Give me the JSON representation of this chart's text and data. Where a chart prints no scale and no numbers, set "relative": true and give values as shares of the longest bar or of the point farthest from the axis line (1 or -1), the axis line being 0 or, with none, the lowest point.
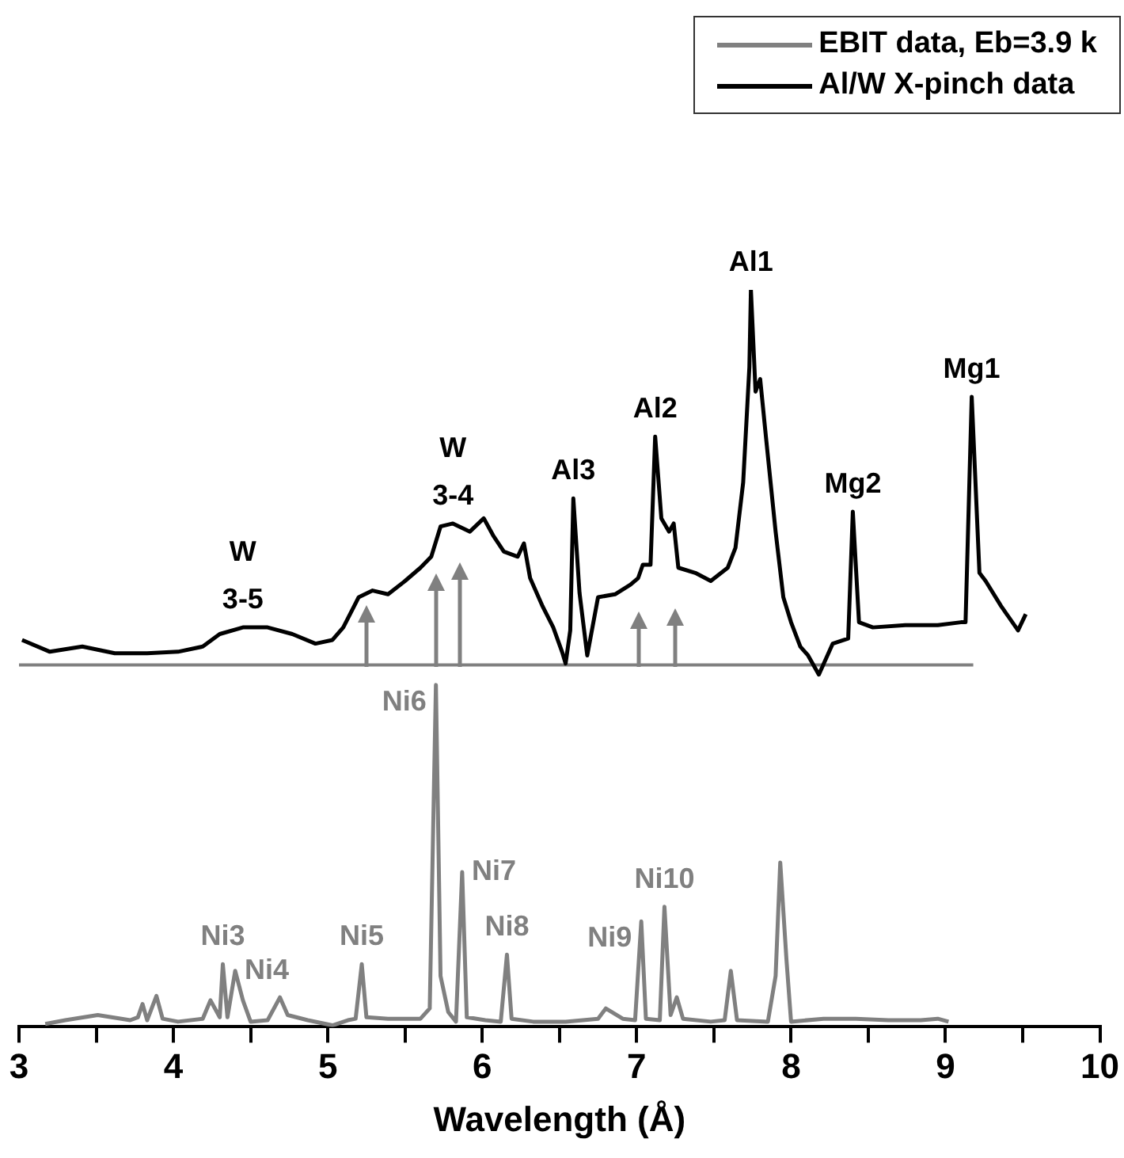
{
  "chart_data": {
    "type": "line",
    "relative": true,
    "xlabel": "Wavelength (Å)",
    "xlim": [
      3,
      10
    ],
    "xticks": [
      3,
      {
        "value": 3.5,
        "label": null
      },
      4,
      {
        "value": 4.5,
        "label": null
      },
      5,
      {
        "value": 5.5,
        "label": null
      },
      6,
      {
        "value": 6.5,
        "label": null
      },
      7,
      {
        "value": 7.5,
        "label": null
      },
      8,
      {
        "value": 8.5,
        "label": null
      },
      9,
      {
        "value": 9.5,
        "label": null
      },
      10
    ],
    "tick_labels": "x",
    "grid": false,
    "legend": "top right",
    "line_style": "solid",
    "series": [
      {
        "name": "EBIT data, Eb=3.9 k",
        "color": "#808080",
        "marker": "none",
        "x": [
          3.17,
          3.3,
          3.51,
          3.72,
          3.77,
          3.8,
          3.83,
          3.89,
          3.93,
          4.03,
          4.19,
          4.24,
          4.3,
          4.32,
          4.35,
          4.4,
          4.45,
          4.5,
          4.61,
          4.69,
          4.74,
          4.87,
          5.03,
          5.13,
          5.18,
          5.22,
          5.25,
          5.39,
          5.6,
          5.66,
          5.7,
          5.73,
          5.78,
          5.83,
          5.87,
          5.9,
          6.02,
          6.12,
          6.16,
          6.19,
          6.33,
          6.54,
          6.75,
          6.8,
          6.91,
          6.99,
          7.03,
          7.06,
          7.15,
          7.18,
          7.22,
          7.26,
          7.3,
          7.48,
          7.57,
          7.61,
          7.65,
          7.85,
          7.9,
          7.93,
          7.97,
          8.0,
          8.21,
          8.42,
          8.63,
          8.84,
          8.95,
          9.02
        ],
        "values": [
          0.004,
          0.009,
          0.016,
          0.009,
          0.013,
          0.031,
          0.009,
          0.042,
          0.011,
          0.007,
          0.011,
          0.036,
          0.013,
          0.085,
          0.013,
          0.076,
          0.036,
          0.007,
          0.009,
          0.04,
          0.016,
          0.009,
          0.002,
          0.009,
          0.011,
          0.085,
          0.013,
          0.011,
          0.011,
          0.025,
          0.464,
          0.069,
          0.02,
          0.007,
          0.21,
          0.013,
          0.009,
          0.007,
          0.098,
          0.011,
          0.007,
          0.007,
          0.011,
          0.025,
          0.011,
          0.009,
          0.143,
          0.011,
          0.009,
          0.163,
          0.016,
          0.04,
          0.011,
          0.007,
          0.009,
          0.076,
          0.009,
          0.007,
          0.069,
          0.223,
          0.092,
          0.007,
          0.011,
          0.011,
          0.009,
          0.009,
          0.011,
          0.007
        ]
      },
      {
        "name": "Al/W X-pinch data",
        "color": "#000000",
        "marker": "none",
        "x": [
          3.02,
          3.2,
          3.41,
          3.62,
          3.83,
          4.03,
          4.19,
          4.3,
          4.45,
          4.61,
          4.77,
          4.92,
          5.03,
          5.1,
          5.2,
          5.29,
          5.39,
          5.5,
          5.6,
          5.67,
          5.73,
          5.81,
          5.92,
          6.01,
          6.07,
          6.14,
          6.23,
          6.27,
          6.31,
          6.39,
          6.46,
          6.52,
          6.54,
          6.57,
          6.59,
          6.63,
          6.68,
          6.75,
          6.86,
          6.96,
          7.01,
          7.04,
          7.09,
          7.12,
          7.16,
          7.21,
          7.24,
          7.27,
          7.38,
          7.48,
          7.59,
          7.64,
          7.69,
          7.73,
          7.74,
          7.77,
          7.8,
          7.84,
          7.9,
          7.95,
          8.0,
          8.06,
          8.11,
          8.18,
          8.27,
          8.37,
          8.4,
          8.44,
          8.53,
          8.74,
          8.95,
          9.1,
          9.13,
          9.17,
          9.22,
          9.26,
          9.36,
          9.47,
          9.52
        ],
        "values": [
          0.525,
          0.509,
          0.516,
          0.507,
          0.507,
          0.509,
          0.516,
          0.533,
          0.542,
          0.542,
          0.533,
          0.52,
          0.525,
          0.542,
          0.583,
          0.592,
          0.587,
          0.605,
          0.623,
          0.638,
          0.679,
          0.683,
          0.672,
          0.69,
          0.667,
          0.645,
          0.638,
          0.656,
          0.609,
          0.571,
          0.542,
          0.507,
          0.493,
          0.538,
          0.717,
          0.589,
          0.504,
          0.583,
          0.587,
          0.6,
          0.609,
          0.627,
          0.627,
          0.801,
          0.69,
          0.672,
          0.683,
          0.623,
          0.616,
          0.605,
          0.623,
          0.65,
          0.739,
          0.895,
          1,
          0.862,
          0.879,
          0.795,
          0.672,
          0.583,
          0.549,
          0.516,
          0.504,
          0.478,
          0.52,
          0.527,
          0.699,
          0.549,
          0.542,
          0.545,
          0.545,
          0.549,
          0.549,
          0.855,
          0.616,
          0.605,
          0.571,
          0.538,
          0.56
        ]
      },
      {
        "type": "line",
        "color": "#808080",
        "marker": "none",
        "x": [
          3,
          9.18
        ],
        "values": [
          0.491,
          0.491
        ]
      }
    ],
    "annotations": [
      {
        "text": "W\n3-5",
        "x": 4.45,
        "y": 0.542
      },
      {
        "text": "W\n3-4",
        "x": 5.81,
        "y": 0.683
      },
      {
        "text": "Al3",
        "x": 6.59,
        "y": 0.717
      },
      {
        "text": "Al2",
        "x": 7.12,
        "y": 0.801
      },
      {
        "text": "Al1",
        "x": 7.74,
        "y": 1
      },
      {
        "text": "Mg2",
        "x": 8.4,
        "y": 0.699
      },
      {
        "text": "Mg1",
        "x": 9.17,
        "y": 0.855
      },
      {
        "text": "Ni3",
        "x": 4.32,
        "y": 0.085
      },
      {
        "text": "Ni4",
        "x": 4.4,
        "y": 0.076
      },
      {
        "text": "Ni5",
        "x": 5.22,
        "y": 0.085
      },
      {
        "text": "Ni6",
        "x": 5.7,
        "y": 0.464
      },
      {
        "text": "Ni7",
        "x": 5.87,
        "y": 0.21
      },
      {
        "text": "Ni8",
        "x": 6.16,
        "y": 0.098
      },
      {
        "text": "Ni9",
        "x": 7.03,
        "y": 0.143
      },
      {
        "text": "Ni10",
        "x": 7.18,
        "y": 0.163
      }
    ]
  }
}
